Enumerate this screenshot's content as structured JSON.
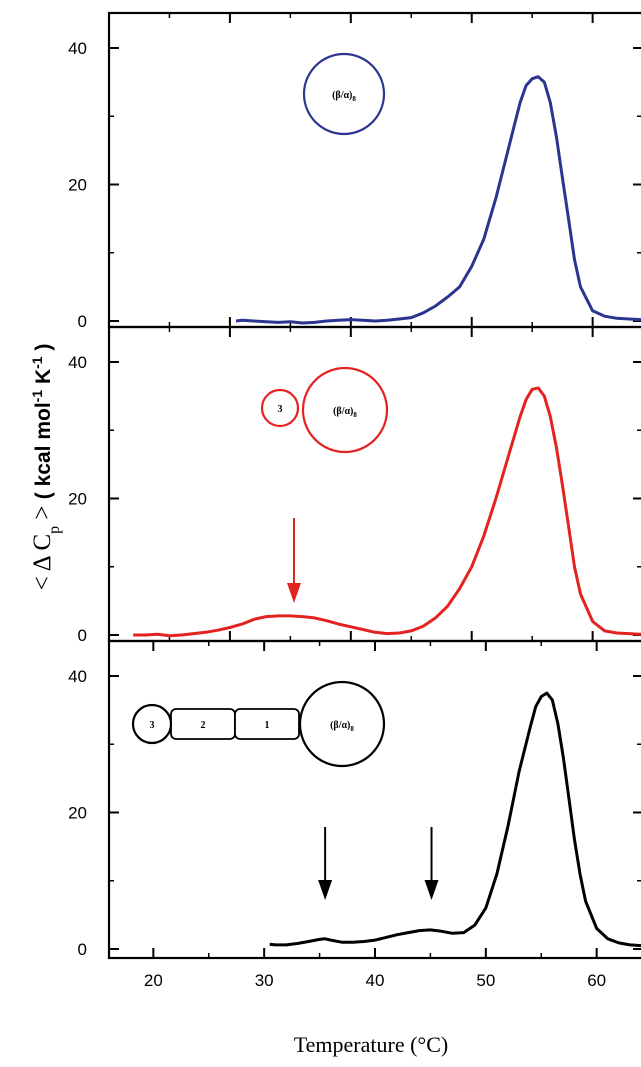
{
  "figure": {
    "xlabel": "Temperature (°C)",
    "ylabel_parts": {
      "lt": "< Δ C",
      "p": "p",
      "gt": " > ",
      "units": "( kcal  mol",
      "exp1": "-1",
      "k": "  K",
      "exp2": "-1",
      "close": " )"
    }
  },
  "chart_data": [
    {
      "type": "line",
      "color": "#2b3590",
      "xlim": [
        20,
        64
      ],
      "ylim": [
        -1,
        44
      ],
      "y_ticks": [
        0,
        20,
        40
      ],
      "x_ticks": [
        20,
        30,
        40,
        50,
        60
      ],
      "show_x_tick_labels": false,
      "legend": "none",
      "grid": false,
      "domain_diagram": {
        "circles": [
          {
            "label_main": "(β/α)",
            "label_sub": "8"
          }
        ],
        "rects": []
      },
      "arrows_at_x": [],
      "series": [
        {
          "x": [
            30.5,
            31,
            32,
            33,
            34,
            35,
            36,
            37,
            38,
            39,
            40,
            41,
            42,
            43,
            44,
            45,
            46,
            47,
            48,
            49,
            50,
            51,
            52,
            53,
            53.5,
            54,
            54.5,
            55,
            55.5,
            56,
            56.5,
            57,
            57.5,
            58,
            58.5,
            59,
            60,
            61,
            62,
            63,
            64
          ],
          "y": [
            0,
            0.1,
            0,
            -0.1,
            -0.2,
            -0.1,
            -0.3,
            -0.2,
            0,
            0.1,
            0.2,
            0.1,
            0,
            0.1,
            0.3,
            0.5,
            1.2,
            2.2,
            3.5,
            5,
            8,
            12,
            18,
            25,
            28.5,
            32,
            34.5,
            35.5,
            35.8,
            35,
            32,
            27,
            21,
            15,
            9,
            5,
            1.5,
            0.7,
            0.4,
            0.3,
            0.2
          ]
        }
      ]
    },
    {
      "type": "line",
      "color": "#e3231f",
      "xlim": [
        20,
        64
      ],
      "ylim": [
        -1,
        44
      ],
      "y_ticks": [
        0,
        20,
        40
      ],
      "x_ticks": [
        20,
        30,
        40,
        50,
        60
      ],
      "show_x_tick_labels": false,
      "legend": "none",
      "grid": false,
      "domain_diagram": {
        "circles": [
          {
            "label_main": "3",
            "label_sub": ""
          },
          {
            "label_main": "(β/α)",
            "label_sub": "8"
          }
        ],
        "rects": []
      },
      "arrows_at_x": [
        35.3
      ],
      "series": [
        {
          "x": [
            22,
            23,
            24,
            25,
            26,
            27,
            28,
            29,
            30,
            31,
            32,
            33,
            34,
            35,
            36,
            37,
            38,
            39,
            40,
            41,
            42,
            43,
            44,
            45,
            46,
            47,
            48,
            49,
            50,
            51,
            52,
            53,
            54,
            54.5,
            55,
            55.5,
            56,
            56.5,
            57,
            57.5,
            58,
            58.5,
            59,
            60,
            61,
            62,
            63,
            64
          ],
          "y": [
            0,
            0,
            0.1,
            -0.1,
            0,
            0.2,
            0.4,
            0.7,
            1.1,
            1.6,
            2.3,
            2.7,
            2.8,
            2.8,
            2.7,
            2.5,
            2.1,
            1.6,
            1.2,
            0.8,
            0.4,
            0.2,
            0.3,
            0.6,
            1.3,
            2.5,
            4.2,
            6.8,
            10,
            14.5,
            20,
            26,
            32,
            34.5,
            36,
            36.2,
            35,
            32,
            27.5,
            22,
            16,
            10,
            6,
            2,
            0.6,
            0.3,
            0.2,
            0.1
          ]
        }
      ]
    },
    {
      "type": "line",
      "color": "#000000",
      "xlim": [
        16,
        64
      ],
      "ylim": [
        -1,
        43
      ],
      "y_ticks": [
        0,
        20,
        40
      ],
      "x_ticks": [
        20,
        30,
        40,
        50,
        60
      ],
      "show_x_tick_labels": true,
      "legend": "none",
      "grid": false,
      "domain_diagram": {
        "circles": [
          {
            "label_main": "3",
            "label_sub": ""
          },
          {
            "label_main": "(β/α)",
            "label_sub": "8"
          }
        ],
        "rects": [
          "2",
          "1"
        ]
      },
      "arrows_at_x": [
        35.5,
        45.1
      ],
      "series": [
        {
          "x": [
            30.5,
            31,
            32,
            33,
            34,
            35,
            35.5,
            36,
            37,
            38,
            39,
            40,
            41,
            42,
            43,
            44,
            45,
            46,
            47,
            48,
            49,
            50,
            51,
            52,
            53,
            54,
            54.5,
            55,
            55.5,
            56,
            56.5,
            57,
            57.5,
            58,
            58.5,
            59,
            60,
            61,
            62,
            63,
            64
          ],
          "y": [
            0.7,
            0.6,
            0.6,
            0.8,
            1.1,
            1.4,
            1.5,
            1.3,
            1.0,
            1.0,
            1.1,
            1.3,
            1.7,
            2.1,
            2.4,
            2.7,
            2.8,
            2.6,
            2.3,
            2.4,
            3.5,
            6,
            11,
            18,
            26,
            32.5,
            35.5,
            37,
            37.5,
            36.5,
            33,
            28,
            22,
            16,
            11,
            7,
            3,
            1.5,
            0.9,
            0.6,
            0.5
          ]
        }
      ]
    }
  ]
}
